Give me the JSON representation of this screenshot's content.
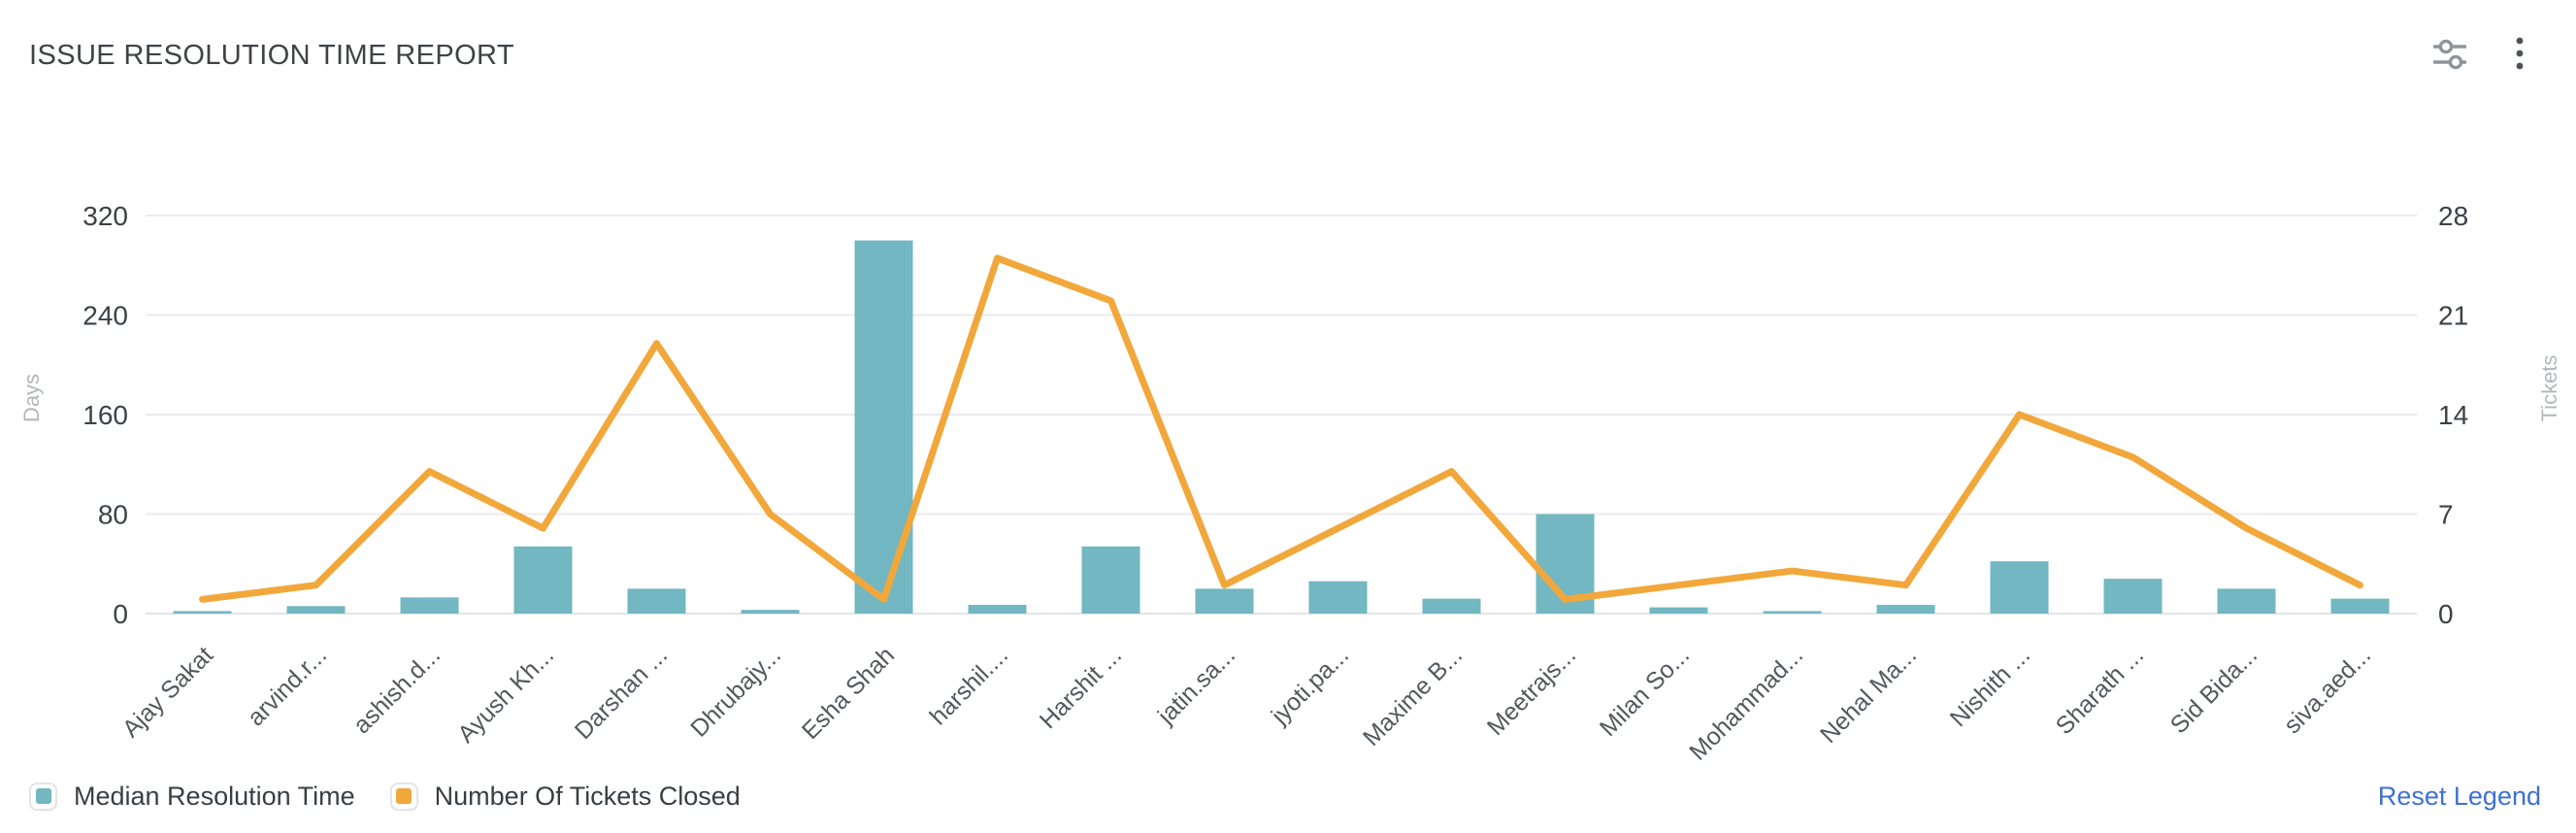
{
  "header": {
    "title": "ISSUE RESOLUTION TIME REPORT"
  },
  "toolbar": {
    "icons": [
      "filter-settings-icon",
      "more-options-icon"
    ]
  },
  "chart_data": {
    "type": "bar",
    "title": "ISSUE RESOLUTION TIME REPORT",
    "categories": [
      "Ajay Sakat",
      "arvind.r...",
      "ashish.d...",
      "Ayush Kh...",
      "Darshan ...",
      "Dhrubajy...",
      "Esha Shah",
      "harshil....",
      "Harshit ...",
      "jatin.sa...",
      "jyoti.pa...",
      "Maxime B...",
      "Meetrajs...",
      "Milan So...",
      "Mohammad...",
      "Nehal Ma...",
      "Nishith ...",
      "Sharath ...",
      "Sid Bida...",
      "siva.aed..."
    ],
    "series": [
      {
        "name": "Median Resolution Time",
        "type": "bar",
        "axis": "left",
        "color": "#72b7c2",
        "values": [
          2,
          6,
          13,
          54,
          20,
          3,
          300,
          7,
          54,
          20,
          26,
          12,
          80,
          5,
          2,
          7,
          42,
          28,
          20,
          12
        ]
      },
      {
        "name": "Number Of Tickets Closed",
        "type": "line",
        "axis": "right",
        "color": "#f2a73b",
        "values": [
          1,
          2,
          10,
          6,
          19,
          7,
          1,
          25,
          22,
          2,
          6,
          10,
          1,
          2,
          3,
          2,
          14,
          11,
          6,
          2
        ]
      }
    ],
    "left_axis": {
      "label": "Days",
      "ticks": [
        0,
        80,
        160,
        240,
        320
      ],
      "range": [
        0,
        320
      ]
    },
    "right_axis": {
      "label": "Tickets",
      "ticks": [
        0,
        7,
        14,
        21,
        28
      ],
      "range": [
        0,
        28
      ]
    },
    "grid": true,
    "x_label_rotation": -45,
    "legend_position": "bottom-left"
  },
  "legend": {
    "items": [
      {
        "label": "Median Resolution Time",
        "color": "#72b7c2"
      },
      {
        "label": "Number Of Tickets Closed",
        "color": "#f2a73b"
      }
    ]
  },
  "footer": {
    "reset_label": "Reset Legend"
  },
  "colors": {
    "grid": "#e9ebee",
    "axis_line": "#e2e5e8",
    "y_tick_text": "#3d4146",
    "x_tick_text": "#54585d",
    "axis_name_text": "#b3b7bb",
    "title_text": "#3f4347",
    "link": "#3e70d2"
  }
}
